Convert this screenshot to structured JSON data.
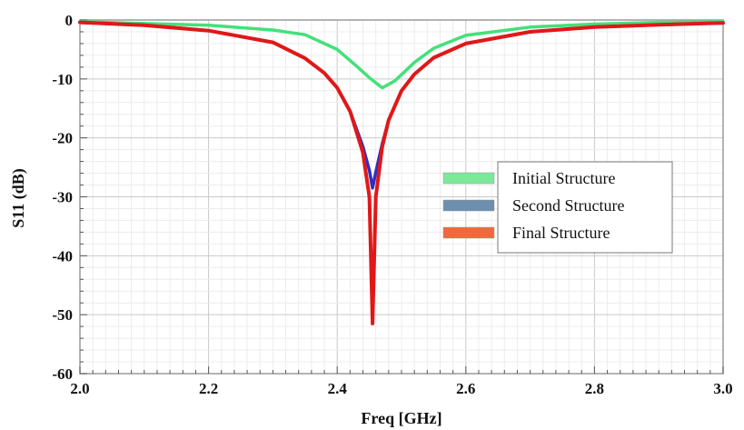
{
  "chart_data": {
    "type": "line",
    "title": "",
    "xlabel": "Freq [GHz]",
    "ylabel": "S11 (dB)",
    "xlim": [
      2.0,
      3.0
    ],
    "ylim": [
      -60,
      0
    ],
    "x_ticks": [
      2.0,
      2.2,
      2.4,
      2.6,
      2.8,
      3.0
    ],
    "x_tick_labels": [
      "2.0",
      "2.2",
      "2.4",
      "2.6",
      "2.8",
      "3.0"
    ],
    "y_ticks": [
      0,
      -10,
      -20,
      -30,
      -40,
      -50,
      -60
    ],
    "y_tick_labels": [
      "0",
      "-10",
      "-20",
      "-30",
      "-40",
      "-50",
      "-60"
    ],
    "grid": true,
    "legend_position": "right-center",
    "series": [
      {
        "name": "Initial Structure",
        "color": "#44e07a",
        "legend_color": "#7ce89a",
        "x": [
          2.0,
          2.1,
          2.2,
          2.3,
          2.35,
          2.4,
          2.43,
          2.45,
          2.47,
          2.49,
          2.52,
          2.55,
          2.6,
          2.7,
          2.8,
          2.9,
          3.0
        ],
        "y": [
          -0.3,
          -0.6,
          -0.9,
          -1.7,
          -2.5,
          -5.0,
          -7.8,
          -9.8,
          -11.5,
          -10.3,
          -7.2,
          -4.8,
          -2.6,
          -1.2,
          -0.7,
          -0.4,
          -0.3
        ]
      },
      {
        "name": "Second Structure",
        "color": "#2f2ec0",
        "legend_color": "#6d8fae",
        "x": [
          2.0,
          2.1,
          2.2,
          2.3,
          2.35,
          2.38,
          2.4,
          2.42,
          2.44,
          2.45,
          2.455,
          2.46,
          2.47,
          2.48,
          2.5,
          2.52,
          2.55,
          2.6,
          2.7,
          2.8,
          2.9,
          3.0
        ],
        "y": [
          -0.4,
          -0.9,
          -1.8,
          -3.8,
          -6.5,
          -9.0,
          -11.5,
          -15.5,
          -21.5,
          -25.5,
          -28.5,
          -25.8,
          -21.0,
          -17.0,
          -12.0,
          -9.2,
          -6.4,
          -4.0,
          -2.0,
          -1.2,
          -0.8,
          -0.5
        ]
      },
      {
        "name": "Final Structure",
        "color": "#e01818",
        "legend_color": "#ee6a3a",
        "x": [
          2.0,
          2.1,
          2.2,
          2.3,
          2.35,
          2.38,
          2.4,
          2.42,
          2.44,
          2.45,
          2.455,
          2.46,
          2.47,
          2.48,
          2.5,
          2.52,
          2.55,
          2.6,
          2.7,
          2.8,
          2.9,
          3.0
        ],
        "y": [
          -0.4,
          -0.9,
          -1.8,
          -3.8,
          -6.5,
          -9.0,
          -11.5,
          -15.5,
          -22.5,
          -30.0,
          -51.5,
          -30.0,
          -21.5,
          -17.0,
          -12.0,
          -9.2,
          -6.4,
          -4.0,
          -2.0,
          -1.2,
          -0.8,
          -0.5
        ]
      }
    ]
  }
}
